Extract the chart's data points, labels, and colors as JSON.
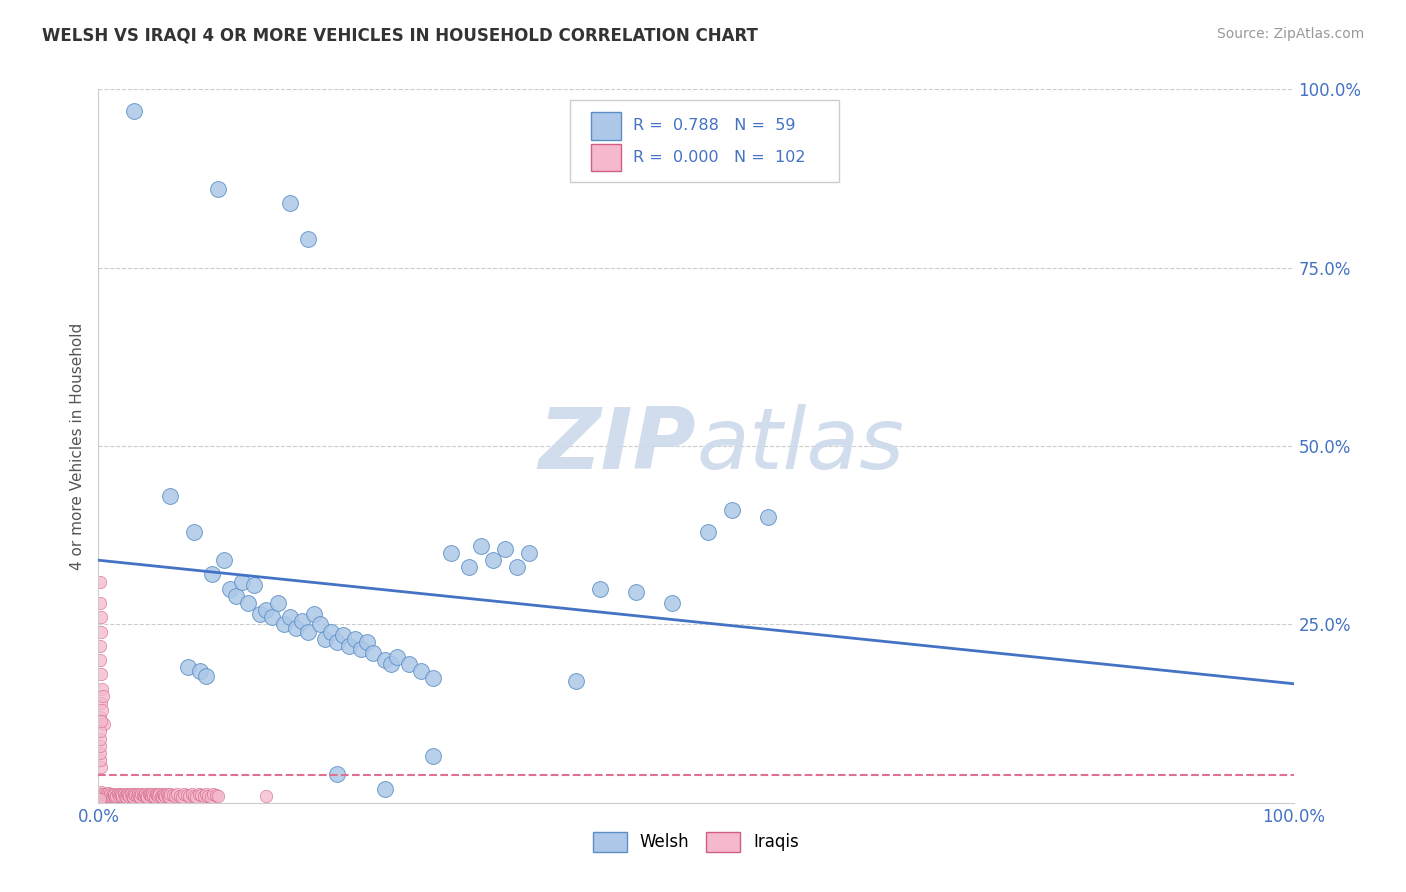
{
  "title": "WELSH VS IRAQI 4 OR MORE VEHICLES IN HOUSEHOLD CORRELATION CHART",
  "source": "Source: ZipAtlas.com",
  "ylabel": "4 or more Vehicles in Household",
  "legend_welsh": "Welsh",
  "legend_iraqis": "Iraqis",
  "R_welsh": "0.788",
  "N_welsh": "59",
  "R_iraqis": "0.000",
  "N_iraqis": "102",
  "welsh_face_color": "#adc8e8",
  "welsh_edge_color": "#5b8ec4",
  "iraqis_face_color": "#f5b8cc",
  "iraqis_edge_color": "#d06080",
  "reg_line_welsh_color": "#4472c4",
  "reg_line_iraqis_color": "#e07090",
  "background_color": "#ffffff",
  "grid_color": "#cccccc",
  "tick_label_color": "#4472c4",
  "title_color": "#333333",
  "source_color": "#999999",
  "watermark_color": "#ccdaeb",
  "welsh_points": [
    [
      0.03,
      0.97
    ],
    [
      0.1,
      0.86
    ],
    [
      0.16,
      0.84
    ],
    [
      0.175,
      0.79
    ],
    [
      0.06,
      0.43
    ],
    [
      0.08,
      0.38
    ],
    [
      0.095,
      0.32
    ],
    [
      0.105,
      0.34
    ],
    [
      0.11,
      0.3
    ],
    [
      0.115,
      0.29
    ],
    [
      0.12,
      0.31
    ],
    [
      0.125,
      0.28
    ],
    [
      0.13,
      0.305
    ],
    [
      0.135,
      0.265
    ],
    [
      0.14,
      0.27
    ],
    [
      0.145,
      0.26
    ],
    [
      0.15,
      0.28
    ],
    [
      0.155,
      0.25
    ],
    [
      0.16,
      0.26
    ],
    [
      0.165,
      0.245
    ],
    [
      0.17,
      0.255
    ],
    [
      0.175,
      0.24
    ],
    [
      0.18,
      0.265
    ],
    [
      0.185,
      0.25
    ],
    [
      0.19,
      0.23
    ],
    [
      0.195,
      0.24
    ],
    [
      0.2,
      0.225
    ],
    [
      0.205,
      0.235
    ],
    [
      0.21,
      0.22
    ],
    [
      0.215,
      0.23
    ],
    [
      0.22,
      0.215
    ],
    [
      0.225,
      0.225
    ],
    [
      0.23,
      0.21
    ],
    [
      0.24,
      0.2
    ],
    [
      0.245,
      0.195
    ],
    [
      0.25,
      0.205
    ],
    [
      0.26,
      0.195
    ],
    [
      0.27,
      0.185
    ],
    [
      0.28,
      0.175
    ],
    [
      0.295,
      0.35
    ],
    [
      0.31,
      0.33
    ],
    [
      0.32,
      0.36
    ],
    [
      0.33,
      0.34
    ],
    [
      0.34,
      0.355
    ],
    [
      0.35,
      0.33
    ],
    [
      0.36,
      0.35
    ],
    [
      0.4,
      0.17
    ],
    [
      0.42,
      0.3
    ],
    [
      0.45,
      0.295
    ],
    [
      0.48,
      0.28
    ],
    [
      0.51,
      0.38
    ],
    [
      0.53,
      0.41
    ],
    [
      0.56,
      0.4
    ],
    [
      0.2,
      0.04
    ],
    [
      0.24,
      0.02
    ],
    [
      0.28,
      0.065
    ],
    [
      0.075,
      0.19
    ],
    [
      0.085,
      0.185
    ],
    [
      0.09,
      0.178
    ]
  ],
  "iraqis_points": [
    [
      0.001,
      0.01
    ],
    [
      0.002,
      0.015
    ],
    [
      0.003,
      0.012
    ],
    [
      0.004,
      0.008
    ],
    [
      0.005,
      0.013
    ],
    [
      0.006,
      0.011
    ],
    [
      0.007,
      0.009
    ],
    [
      0.008,
      0.014
    ],
    [
      0.009,
      0.01
    ],
    [
      0.01,
      0.012
    ],
    [
      0.011,
      0.009
    ],
    [
      0.012,
      0.013
    ],
    [
      0.013,
      0.011
    ],
    [
      0.014,
      0.008
    ],
    [
      0.015,
      0.01
    ],
    [
      0.016,
      0.012
    ],
    [
      0.017,
      0.009
    ],
    [
      0.018,
      0.013
    ],
    [
      0.019,
      0.011
    ],
    [
      0.02,
      0.009
    ],
    [
      0.021,
      0.012
    ],
    [
      0.022,
      0.01
    ],
    [
      0.023,
      0.008
    ],
    [
      0.024,
      0.013
    ],
    [
      0.025,
      0.011
    ],
    [
      0.026,
      0.009
    ],
    [
      0.027,
      0.012
    ],
    [
      0.028,
      0.01
    ],
    [
      0.029,
      0.008
    ],
    [
      0.03,
      0.013
    ],
    [
      0.031,
      0.011
    ],
    [
      0.032,
      0.009
    ],
    [
      0.033,
      0.012
    ],
    [
      0.034,
      0.01
    ],
    [
      0.035,
      0.008
    ],
    [
      0.036,
      0.013
    ],
    [
      0.037,
      0.011
    ],
    [
      0.038,
      0.009
    ],
    [
      0.039,
      0.012
    ],
    [
      0.04,
      0.01
    ],
    [
      0.041,
      0.008
    ],
    [
      0.042,
      0.013
    ],
    [
      0.043,
      0.011
    ],
    [
      0.044,
      0.009
    ],
    [
      0.045,
      0.012
    ],
    [
      0.046,
      0.01
    ],
    [
      0.047,
      0.008
    ],
    [
      0.048,
      0.013
    ],
    [
      0.049,
      0.011
    ],
    [
      0.05,
      0.009
    ],
    [
      0.051,
      0.012
    ],
    [
      0.052,
      0.01
    ],
    [
      0.053,
      0.008
    ],
    [
      0.054,
      0.013
    ],
    [
      0.055,
      0.011
    ],
    [
      0.056,
      0.009
    ],
    [
      0.057,
      0.012
    ],
    [
      0.058,
      0.01
    ],
    [
      0.059,
      0.008
    ],
    [
      0.06,
      0.013
    ],
    [
      0.062,
      0.011
    ],
    [
      0.064,
      0.009
    ],
    [
      0.066,
      0.012
    ],
    [
      0.068,
      0.01
    ],
    [
      0.07,
      0.008
    ],
    [
      0.072,
      0.013
    ],
    [
      0.074,
      0.011
    ],
    [
      0.076,
      0.009
    ],
    [
      0.078,
      0.012
    ],
    [
      0.08,
      0.01
    ],
    [
      0.082,
      0.008
    ],
    [
      0.084,
      0.013
    ],
    [
      0.086,
      0.011
    ],
    [
      0.088,
      0.009
    ],
    [
      0.09,
      0.012
    ],
    [
      0.092,
      0.01
    ],
    [
      0.094,
      0.008
    ],
    [
      0.096,
      0.013
    ],
    [
      0.098,
      0.011
    ],
    [
      0.1,
      0.009
    ],
    [
      0.001,
      0.2
    ],
    [
      0.002,
      0.18
    ],
    [
      0.003,
      0.16
    ],
    [
      0.001,
      0.22
    ],
    [
      0.002,
      0.24
    ],
    [
      0.001,
      0.12
    ],
    [
      0.002,
      0.14
    ],
    [
      0.003,
      0.13
    ],
    [
      0.004,
      0.15
    ],
    [
      0.005,
      0.11
    ],
    [
      0.001,
      0.28
    ],
    [
      0.002,
      0.26
    ],
    [
      0.001,
      0.31
    ],
    [
      0.002,
      0.05
    ],
    [
      0.001,
      0.06
    ],
    [
      0.001,
      0.07
    ],
    [
      0.001,
      0.08
    ],
    [
      0.001,
      0.09
    ],
    [
      0.001,
      0.1
    ],
    [
      0.002,
      0.115
    ],
    [
      0.14,
      0.01
    ],
    [
      0.001,
      0.005
    ]
  ]
}
